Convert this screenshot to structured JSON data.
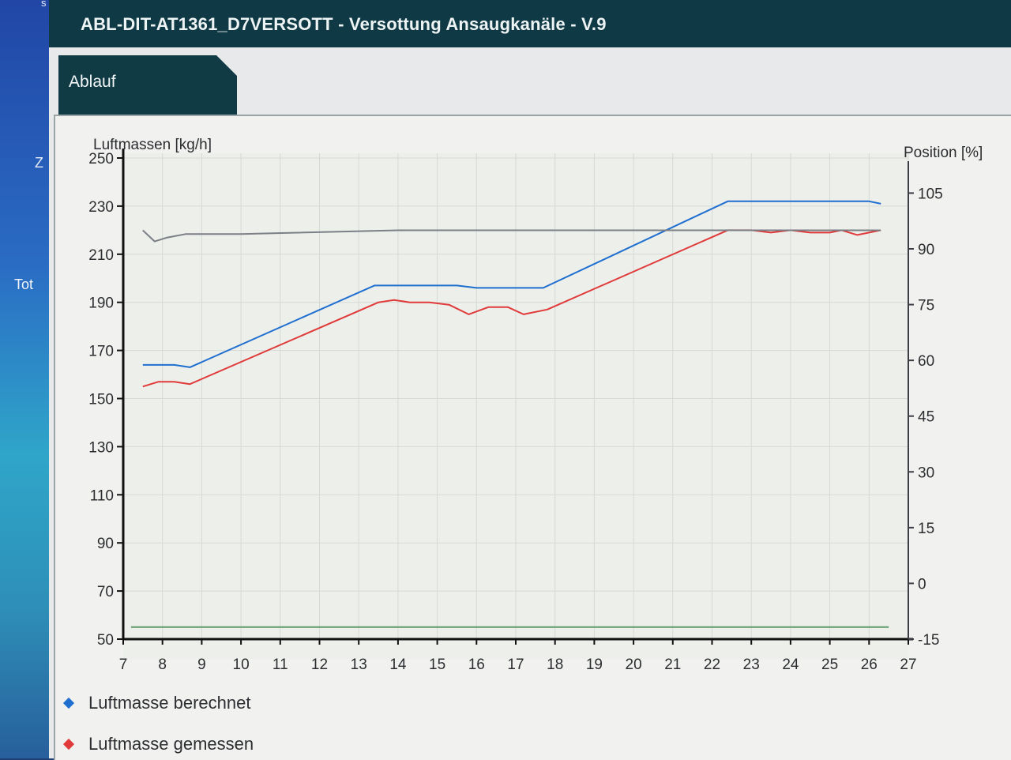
{
  "window": {
    "title": "ABL-DIT-AT1361_D7VERSOTT  -  Versottung Ansaugkanäle  -  V.9"
  },
  "sidebar": {
    "glyph_top": "s",
    "glyph_z": "Z",
    "label_tot": "Tot"
  },
  "tabs": [
    {
      "label": "Ablauf",
      "active": true
    }
  ],
  "legend": [
    {
      "label": "Luftmasse berechnet",
      "color": "#1f6fd1"
    },
    {
      "label": "Luftmasse gemessen",
      "color": "#e03a3a"
    }
  ],
  "chart_data": {
    "type": "line",
    "y_left_label": "Luftmassen [kg/h]",
    "y_right_label": "Position [%]",
    "x_range": [
      7,
      27
    ],
    "x_ticks": [
      7,
      8,
      9,
      10,
      11,
      12,
      13,
      14,
      15,
      16,
      17,
      18,
      19,
      20,
      21,
      22,
      23,
      24,
      25,
      26,
      27
    ],
    "y_left_range": [
      50,
      250
    ],
    "y_left_ticks": [
      50,
      70,
      90,
      110,
      130,
      150,
      170,
      190,
      210,
      230,
      250
    ],
    "y_right_range": [
      -15,
      107
    ],
    "y_right_ticks": [
      -15,
      0,
      15,
      30,
      45,
      60,
      75,
      90,
      105
    ],
    "series": [
      {
        "name": "Luftmasse berechnet",
        "axis": "left",
        "color": "#1f6fd1",
        "points": [
          [
            7.5,
            164
          ],
          [
            8.3,
            164
          ],
          [
            8.7,
            163
          ],
          [
            13.4,
            197
          ],
          [
            14.5,
            197
          ],
          [
            15.5,
            197
          ],
          [
            16,
            196
          ],
          [
            17,
            196
          ],
          [
            17.7,
            196
          ],
          [
            22.4,
            232
          ],
          [
            23,
            232
          ],
          [
            24,
            232
          ],
          [
            25,
            232
          ],
          [
            26,
            232
          ],
          [
            26.3,
            231
          ]
        ]
      },
      {
        "name": "Luftmasse gemessen",
        "axis": "left",
        "color": "#e03a3a",
        "points": [
          [
            7.5,
            155
          ],
          [
            7.9,
            157
          ],
          [
            8.3,
            157
          ],
          [
            8.7,
            156
          ],
          [
            13.5,
            190
          ],
          [
            13.9,
            191
          ],
          [
            14.3,
            190
          ],
          [
            14.8,
            190
          ],
          [
            15.3,
            189
          ],
          [
            15.8,
            185
          ],
          [
            16.3,
            188
          ],
          [
            16.8,
            188
          ],
          [
            17.2,
            185
          ],
          [
            17.8,
            187
          ],
          [
            22.4,
            220
          ],
          [
            23,
            220
          ],
          [
            23.5,
            219
          ],
          [
            24,
            220
          ],
          [
            24.5,
            219
          ],
          [
            25,
            219
          ],
          [
            25.3,
            220
          ],
          [
            25.7,
            218
          ],
          [
            26.3,
            220
          ]
        ]
      },
      {
        "name": "",
        "axis": "right",
        "color": "#7b7f86",
        "points": [
          [
            7.5,
            95
          ],
          [
            7.8,
            92
          ],
          [
            8.1,
            93
          ],
          [
            8.6,
            94
          ],
          [
            10,
            94
          ],
          [
            14,
            95
          ],
          [
            20,
            95
          ],
          [
            26.3,
            95
          ]
        ]
      },
      {
        "name": "",
        "axis": "left",
        "color": "#5e9b6a",
        "points": [
          [
            7.2,
            55
          ],
          [
            26.5,
            55
          ]
        ]
      }
    ],
    "grid": true
  }
}
